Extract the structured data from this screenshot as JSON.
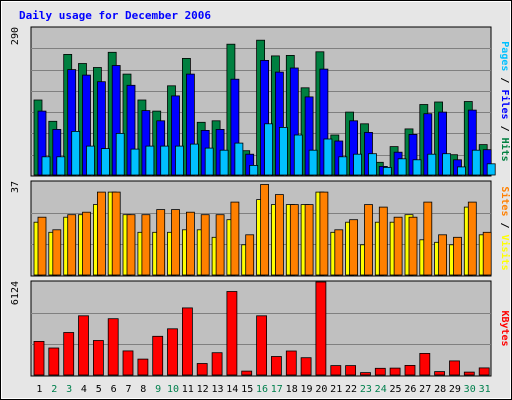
{
  "chart_data": {
    "title": "Daily usage for December 2006",
    "days": [
      "1",
      "2",
      "3",
      "4",
      "5",
      "6",
      "7",
      "8",
      "9",
      "10",
      "11",
      "12",
      "13",
      "14",
      "15",
      "16",
      "17",
      "18",
      "19",
      "20",
      "21",
      "22",
      "23",
      "24",
      "25",
      "26",
      "27",
      "28",
      "29",
      "30",
      "31"
    ],
    "weekend_days": [
      "2",
      "3",
      "9",
      "10",
      "16",
      "17",
      "23",
      "24",
      "30",
      "31"
    ],
    "colors": {
      "hits": "#008040",
      "files": "#0000ff",
      "pages": "#00c0ff",
      "visits": "#ffff00",
      "sites": "#ff8000",
      "kbytes": "#ff0000",
      "plot_bg": "#c0c0c0",
      "frame_bg": "#e6e6e6",
      "weekday_tick": "#000000",
      "weekend_tick": "#00804d"
    },
    "charts": [
      {
        "type": "bar",
        "name": "hits-files-pages",
        "ymax": 290,
        "ytick_label": "290",
        "legend": [
          {
            "text": "Pages",
            "color": "#00c0ff"
          },
          {
            "text": " / ",
            "color": "#000000"
          },
          {
            "text": "Files",
            "color": "#0000ff"
          },
          {
            "text": " / ",
            "color": "#000000"
          },
          {
            "text": "Hits",
            "color": "#008040"
          }
        ],
        "series": [
          {
            "key": "hits",
            "values": [
              148,
              106,
              238,
              220,
              212,
              242,
              199,
              148,
              126,
              176,
              230,
              104,
              107,
              258,
              48,
              266,
              235,
              236,
              172,
              243,
              79,
              124,
              101,
              25,
              56,
              91,
              139,
              144,
              40,
              145,
              60
            ]
          },
          {
            "key": "files",
            "values": [
              126,
              90,
              208,
              197,
              184,
              216,
              177,
              127,
              107,
              156,
              199,
              88,
              90,
              189,
              41,
              226,
              203,
              211,
              154,
              209,
              67,
              107,
              84,
              17,
              45,
              80,
              121,
              124,
              30,
              128,
              50
            ]
          },
          {
            "key": "pages",
            "values": [
              36,
              36,
              86,
              57,
              52,
              82,
              51,
              57,
              57,
              57,
              61,
              53,
              49,
              63,
              19,
              101,
              94,
              79,
              49,
              71,
              36,
              41,
              42,
              15,
              32,
              30,
              41,
              42,
              16,
              49,
              22
            ]
          }
        ]
      },
      {
        "type": "bar",
        "name": "visits-sites",
        "ymax": 37,
        "ytick_label": "37",
        "legend": [
          {
            "text": "Sites",
            "color": "#ff8000"
          },
          {
            "text": " / ",
            "color": "#000000"
          },
          {
            "text": "Visits",
            "color": "#ffff00"
          }
        ],
        "series": [
          {
            "key": "visits",
            "values": [
              21,
              17,
              23,
              24,
              28,
              33,
              24,
              17,
              17,
              17,
              18,
              18,
              15,
              22,
              12,
              30,
              28,
              28,
              28,
              33,
              17,
              21,
              12,
              21,
              21,
              24,
              14,
              13,
              12,
              27,
              16
            ]
          },
          {
            "key": "sites",
            "values": [
              23,
              18,
              24,
              25,
              33,
              33,
              24,
              24,
              26,
              26,
              25,
              24,
              24,
              29,
              16,
              36,
              32,
              28,
              28,
              33,
              18,
              22,
              28,
              27,
              23,
              23,
              29,
              16,
              15,
              29,
              17
            ]
          }
        ]
      },
      {
        "type": "bar",
        "name": "kbytes",
        "ymax": 6124,
        "ytick_label": "6124",
        "legend": [
          {
            "text": "KBytes",
            "color": "#ff0000"
          }
        ],
        "series": [
          {
            "key": "kbytes",
            "values": [
              2210,
              1780,
              2800,
              3900,
              2270,
              3710,
              1590,
              1050,
              2550,
              3040,
              4420,
              755,
              1470,
              5500,
              255,
              3900,
              1220,
              1580,
              1140,
              6124,
              620,
              620,
              155,
              440,
              455,
              630,
              1420,
              225,
              930,
              190,
              470
            ]
          }
        ]
      }
    ]
  }
}
